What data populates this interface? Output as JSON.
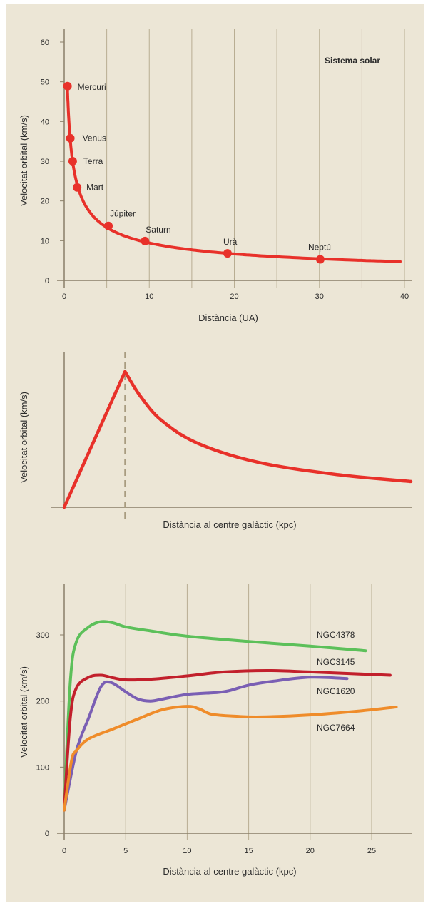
{
  "colors": {
    "background": "#ece6d6",
    "grid": "#b8ad92",
    "axis": "#8a7f68",
    "red": "#e8312a",
    "green": "#5cc05a",
    "darkred": "#c2202c",
    "purple": "#7a5fb4",
    "orange": "#ef8c2a"
  },
  "chart_data": [
    {
      "type": "scatter",
      "title": "Sistema solar",
      "xlabel": "Distància (UA)",
      "ylabel": "Velocitat orbital (km/s)",
      "xlim": [
        0,
        40
      ],
      "ylim": [
        0,
        60
      ],
      "xticks": [
        "0",
        "10",
        "20",
        "30",
        "40"
      ],
      "yticks": [
        "0",
        "10",
        "20",
        "30",
        "40",
        "50",
        "60"
      ],
      "grid": true,
      "points": [
        {
          "name": "Mercuri",
          "x": 0.39,
          "y": 48.9
        },
        {
          "name": "Venus",
          "x": 0.72,
          "y": 35.8
        },
        {
          "name": "Terra",
          "x": 1.0,
          "y": 30.0
        },
        {
          "name": "Mart",
          "x": 1.52,
          "y": 23.4
        },
        {
          "name": "Júpiter",
          "x": 5.2,
          "y": 13.7
        },
        {
          "name": "Saturn",
          "x": 9.5,
          "y": 9.9
        },
        {
          "name": "Urà",
          "x": 19.2,
          "y": 6.8
        },
        {
          "name": "Neptú",
          "x": 30.1,
          "y": 5.3
        }
      ],
      "fit_curve": {
        "law": "v = 29.8 / sqrt(x)",
        "x_range": [
          0.39,
          39.5
        ]
      }
    },
    {
      "type": "line",
      "xlabel": "Distància al centre galàctic (kpc)",
      "ylabel": "Velocitat orbital (km/s)",
      "series": [
        {
          "values": [
            [
              0,
              0
            ],
            [
              1,
              1
            ],
            [
              1.25,
              0.82
            ],
            [
              1.6,
              0.64
            ],
            [
              2.2,
              0.47
            ],
            [
              3.2,
              0.33
            ],
            [
              4.5,
              0.24
            ],
            [
              5.7,
              0.19
            ]
          ]
        }
      ],
      "peak_marker": {
        "x": 1,
        "style": "dashed"
      },
      "xlim": [
        0,
        5.7
      ],
      "ylim": [
        0,
        1.22
      ]
    },
    {
      "type": "line",
      "xlabel": "Distància al centre galàctic (kpc)",
      "ylabel": "Velocitat orbital (km/s)",
      "xlim": [
        0,
        28
      ],
      "ylim": [
        0,
        370
      ],
      "xticks": [
        "0",
        "5",
        "10",
        "15",
        "20",
        "25"
      ],
      "yticks": [
        "0",
        "100",
        "200",
        "300"
      ],
      "grid": true,
      "series": [
        {
          "name": "NGC4378",
          "color": "green",
          "points": [
            [
              0,
              35
            ],
            [
              0.5,
              230
            ],
            [
              1,
              290
            ],
            [
              2,
              312
            ],
            [
              3,
              320
            ],
            [
              4,
              318
            ],
            [
              5,
              312
            ],
            [
              7,
              306
            ],
            [
              10,
              298
            ],
            [
              15,
              290
            ],
            [
              20,
              283
            ],
            [
              24.5,
              276
            ]
          ]
        },
        {
          "name": "NGC3145",
          "color": "darkred",
          "points": [
            [
              0,
              35
            ],
            [
              0.5,
              175
            ],
            [
              1,
              220
            ],
            [
              2,
              236
            ],
            [
              3,
              239
            ],
            [
              4,
              235
            ],
            [
              5,
              232
            ],
            [
              7,
              233
            ],
            [
              10,
              238
            ],
            [
              13,
              244
            ],
            [
              16.5,
              246
            ],
            [
              20,
              244
            ],
            [
              26.5,
              239
            ]
          ]
        },
        {
          "name": "NGC1620",
          "color": "purple",
          "points": [
            [
              0,
              35
            ],
            [
              1,
              125
            ],
            [
              2,
              175
            ],
            [
              3,
              222
            ],
            [
              3.8,
              228
            ],
            [
              5,
              214
            ],
            [
              6,
              203
            ],
            [
              7,
              200
            ],
            [
              8,
              203
            ],
            [
              10,
              210
            ],
            [
              12.5,
              213
            ],
            [
              13.5,
              216
            ],
            [
              15,
              224
            ],
            [
              17,
              230
            ],
            [
              20,
              236
            ],
            [
              23,
              234
            ]
          ]
        },
        {
          "name": "NGC7664",
          "color": "orange",
          "points": [
            [
              0,
              35
            ],
            [
              0.6,
              110
            ],
            [
              1,
              125
            ],
            [
              2,
              143
            ],
            [
              4,
              158
            ],
            [
              6,
              173
            ],
            [
              8,
              187
            ],
            [
              10,
              192
            ],
            [
              11,
              188
            ],
            [
              12,
              180
            ],
            [
              14,
              177
            ],
            [
              16,
              176
            ],
            [
              20,
              179
            ],
            [
              24,
              185
            ],
            [
              27,
              191
            ]
          ]
        }
      ]
    }
  ]
}
